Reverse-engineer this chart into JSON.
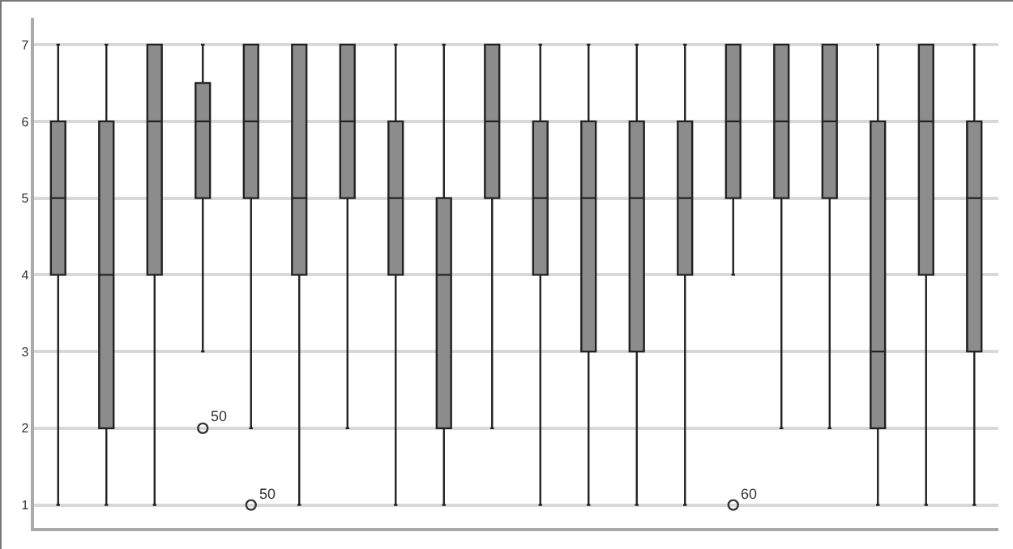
{
  "chart_data": {
    "type": "box",
    "categories": [
      null,
      null,
      null,
      null,
      null,
      null,
      null,
      null,
      null,
      null,
      null,
      null,
      null,
      null,
      null,
      null,
      null,
      null,
      null,
      null
    ],
    "color": "#8c8c8c",
    "boxes": [
      {
        "low": 1,
        "q1": 4,
        "median": 5,
        "q3": 6,
        "high": 7
      },
      {
        "low": 1,
        "q1": 2,
        "median": 4,
        "q3": 6,
        "high": 7
      },
      {
        "low": 1,
        "q1": 4,
        "median": 6,
        "q3": 7,
        "high": 7
      },
      {
        "low": 3,
        "q1": 5,
        "median": 6,
        "q3": 6.5,
        "high": 7,
        "outliers": [
          2
        ]
      },
      {
        "low": 2,
        "q1": 5,
        "median": 6,
        "q3": 7,
        "high": 7,
        "outliers": [
          1
        ]
      },
      {
        "low": 1,
        "q1": 4,
        "median": 5,
        "q3": 7,
        "high": 7
      },
      {
        "low": 2,
        "q1": 5,
        "median": 6,
        "q3": 7,
        "high": 7
      },
      {
        "low": 1,
        "q1": 4,
        "median": 5,
        "q3": 6,
        "high": 7
      },
      {
        "low": 1,
        "q1": 2,
        "median": 4,
        "q3": 5,
        "high": 7
      },
      {
        "low": 2,
        "q1": 5,
        "median": 6,
        "q3": 7,
        "high": 7
      },
      {
        "low": 1,
        "q1": 4,
        "median": 5,
        "q3": 6,
        "high": 7
      },
      {
        "low": 1,
        "q1": 3,
        "median": 5,
        "q3": 6,
        "high": 7
      },
      {
        "low": 1,
        "q1": 3,
        "median": 5,
        "q3": 6,
        "high": 7
      },
      {
        "low": 1,
        "q1": 4,
        "median": 5,
        "q3": 6,
        "high": 7
      },
      {
        "low": 4,
        "q1": 5,
        "median": 6,
        "q3": 7,
        "high": 7,
        "outliers": [
          1
        ]
      },
      {
        "low": 2,
        "q1": 5,
        "median": 6,
        "q3": 7,
        "high": 7
      },
      {
        "low": 2,
        "q1": 5,
        "median": 6,
        "q3": 7,
        "high": 7
      },
      {
        "low": 1,
        "q1": 2,
        "median": 3,
        "q3": 6,
        "high": 7
      },
      {
        "low": 1,
        "q1": 4,
        "median": 6,
        "q3": 7,
        "high": 7
      },
      {
        "low": 1,
        "q1": 3,
        "median": 5,
        "q3": 6,
        "high": 7
      }
    ],
    "annotations": [
      "50",
      "50",
      "60"
    ],
    "ylim": [
      0.7,
      7.35
    ],
    "yticks": [
      1,
      2,
      3,
      4,
      5,
      6,
      7
    ],
    "grid": "y",
    "tick_labels": "y"
  }
}
